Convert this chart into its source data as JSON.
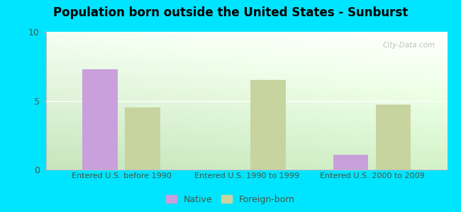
{
  "title": "Population born outside the United States - Sunburst",
  "categories": [
    "Entered U.S. before 1990",
    "Entered U.S. 1990 to 1999",
    "Entered U.S. 2000 to 2009"
  ],
  "native_values": [
    7.3,
    0.0,
    1.1
  ],
  "foreignborn_values": [
    4.5,
    6.5,
    4.7
  ],
  "native_color": "#c9a0dc",
  "foreignborn_color": "#c8d4a0",
  "ylim": [
    0,
    10
  ],
  "yticks": [
    0,
    5,
    10
  ],
  "background_outer": "#00e5ff",
  "background_inner_top_left": "#f0f8ee",
  "background_inner_top_right": "#ffffff",
  "background_inner_bottom_left": "#c8e6c0",
  "background_inner_bottom_right": "#ddf0d8",
  "watermark": "City-Data.com",
  "bar_width": 0.28,
  "legend_native": "Native",
  "legend_foreignborn": "Foreign-born",
  "title_fontsize": 12,
  "axis_label_fontsize": 8,
  "tick_fontsize": 9
}
